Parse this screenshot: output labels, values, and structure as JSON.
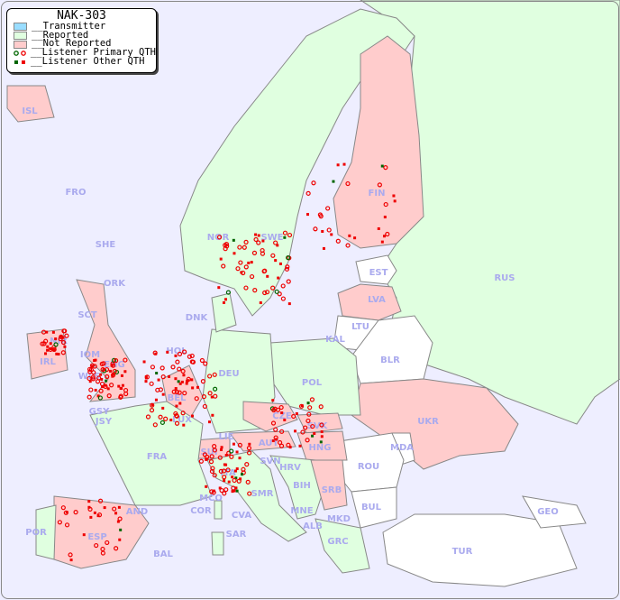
{
  "legend": {
    "title": "NAK-303",
    "items": [
      {
        "label": "__Transmitter",
        "color": "#99ddff"
      },
      {
        "label": "__Reported",
        "color": "#e0ffe0"
      },
      {
        "label": "__Not Reported",
        "color": "#ffcccc"
      },
      {
        "label": "__Listener Primary QTH",
        "marker": "circle",
        "colors": [
          "#006600",
          "#ee0000"
        ]
      },
      {
        "label": "__Listener Other QTH",
        "marker": "square",
        "colors": [
          "#006600",
          "#ee0000"
        ]
      }
    ]
  },
  "colors": {
    "sea": "#eeeeff",
    "reported": "#e0ffe0",
    "not_reported": "#ffcccc",
    "unknown": "#ffffff",
    "border": "#888888",
    "label": "#aaaaee",
    "marker": "#ee0000"
  },
  "countries": [
    "ISL",
    "FRO",
    "SHE",
    "ORK",
    "NOR",
    "SWE",
    "FIN",
    "EST",
    "RUS",
    "LVA",
    "LTU",
    "KAL",
    "BLR",
    "DNK",
    "HOL",
    "DEU",
    "POL",
    "IRL",
    "NIR",
    "SCT",
    "IOM",
    "WLS",
    "ENG",
    "BEL",
    "LUX",
    "GSY",
    "JSY",
    "FRA",
    "SUI",
    "LIE",
    "AUT",
    "CZE",
    "SVK",
    "HNG",
    "UKR",
    "MDA",
    "ROU",
    "SVN",
    "HRV",
    "BIH",
    "SRB",
    "ITA",
    "MCO",
    "COR",
    "SAR",
    "SMR",
    "CVA",
    "AND",
    "ESP",
    "POR",
    "BAL",
    "BUL",
    "MNE",
    "MKD",
    "ALB",
    "GRC",
    "TUR",
    "GEO"
  ]
}
